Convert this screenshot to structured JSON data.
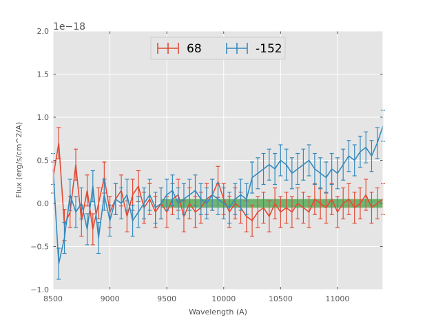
{
  "chart_data": {
    "type": "line",
    "title": "",
    "xlabel": "Wavelength (A)",
    "ylabel": "Flux (erg/s/cm^2/A)",
    "y_offset_label": "1e−18",
    "xlim": [
      8500,
      11400
    ],
    "ylim": [
      -1.0,
      2.0
    ],
    "x_ticks": [
      8500,
      9000,
      9500,
      10000,
      10500,
      11000
    ],
    "x_tick_labels": [
      "8500",
      "9000",
      "9500",
      "10000",
      "10500",
      "11000"
    ],
    "y_ticks": [
      -1.0,
      -0.5,
      0.0,
      0.5,
      1.0,
      1.5,
      2.0
    ],
    "y_tick_labels": [
      "−1.0",
      "−0.5",
      "0.0",
      "0.5",
      "1.0",
      "1.5",
      "2.0"
    ],
    "grid": true,
    "legend_position": "top-center",
    "band": {
      "x_range": [
        9450,
        11400
      ],
      "y_range": [
        -0.05,
        0.05
      ],
      "color": "#3a9e3a"
    },
    "series": [
      {
        "name": "68",
        "color": "#e24a33",
        "error": 0.18,
        "x": [
          8500,
          8550,
          8600,
          8650,
          8700,
          8750,
          8800,
          8850,
          8900,
          8950,
          9000,
          9050,
          9100,
          9150,
          9200,
          9250,
          9300,
          9350,
          9400,
          9450,
          9500,
          9550,
          9600,
          9650,
          9700,
          9750,
          9800,
          9850,
          9900,
          9950,
          10000,
          10050,
          10100,
          10150,
          10200,
          10250,
          10300,
          10350,
          10400,
          10450,
          10500,
          10550,
          10600,
          10650,
          10700,
          10750,
          10800,
          10850,
          10900,
          10950,
          11000,
          11050,
          11100,
          11150,
          11200,
          11250,
          11300,
          11350,
          11400
        ],
        "y": [
          0.3,
          0.7,
          -0.25,
          -0.1,
          0.45,
          -0.2,
          0.15,
          -0.3,
          0.0,
          0.3,
          -0.1,
          0.05,
          0.15,
          -0.15,
          0.1,
          0.2,
          -0.05,
          0.05,
          -0.1,
          0.0,
          -0.1,
          0.05,
          0.1,
          -0.15,
          0.0,
          -0.1,
          -0.05,
          0.05,
          0.1,
          0.25,
          0.05,
          -0.1,
          0.0,
          -0.05,
          -0.15,
          -0.2,
          -0.1,
          -0.05,
          -0.15,
          0.0,
          -0.1,
          -0.05,
          -0.1,
          0.0,
          -0.05,
          -0.1,
          0.05,
          0.0,
          -0.05,
          0.05,
          -0.1,
          0.0,
          0.05,
          -0.05,
          0.0,
          0.1,
          -0.05,
          0.0,
          0.05
        ]
      },
      {
        "name": "-152",
        "color": "#348abd",
        "error": 0.18,
        "x": [
          8500,
          8550,
          8600,
          8650,
          8700,
          8750,
          8800,
          8850,
          8900,
          8950,
          9000,
          9050,
          9100,
          9150,
          9200,
          9250,
          9300,
          9350,
          9400,
          9450,
          9500,
          9550,
          9600,
          9650,
          9700,
          9750,
          9800,
          9850,
          9900,
          9950,
          10000,
          10050,
          10100,
          10150,
          10200,
          10250,
          10300,
          10350,
          10400,
          10450,
          10500,
          10550,
          10600,
          10650,
          10700,
          10750,
          10800,
          10850,
          10900,
          10950,
          11000,
          11050,
          11100,
          11150,
          11200,
          11250,
          11300,
          11350,
          11400
        ],
        "y": [
          0.4,
          -0.7,
          -0.4,
          0.1,
          -0.1,
          0.0,
          -0.3,
          0.2,
          -0.4,
          0.1,
          -0.2,
          0.05,
          0.0,
          0.1,
          -0.2,
          -0.1,
          0.0,
          0.1,
          -0.05,
          0.0,
          0.1,
          0.15,
          0.0,
          0.05,
          0.1,
          0.15,
          0.05,
          0.0,
          0.1,
          0.05,
          0.0,
          -0.05,
          0.05,
          0.1,
          0.05,
          0.3,
          0.35,
          0.4,
          0.45,
          0.4,
          0.5,
          0.45,
          0.35,
          0.4,
          0.45,
          0.5,
          0.4,
          0.35,
          0.3,
          0.4,
          0.35,
          0.45,
          0.55,
          0.5,
          0.6,
          0.65,
          0.55,
          0.7,
          0.9
        ]
      }
    ]
  }
}
